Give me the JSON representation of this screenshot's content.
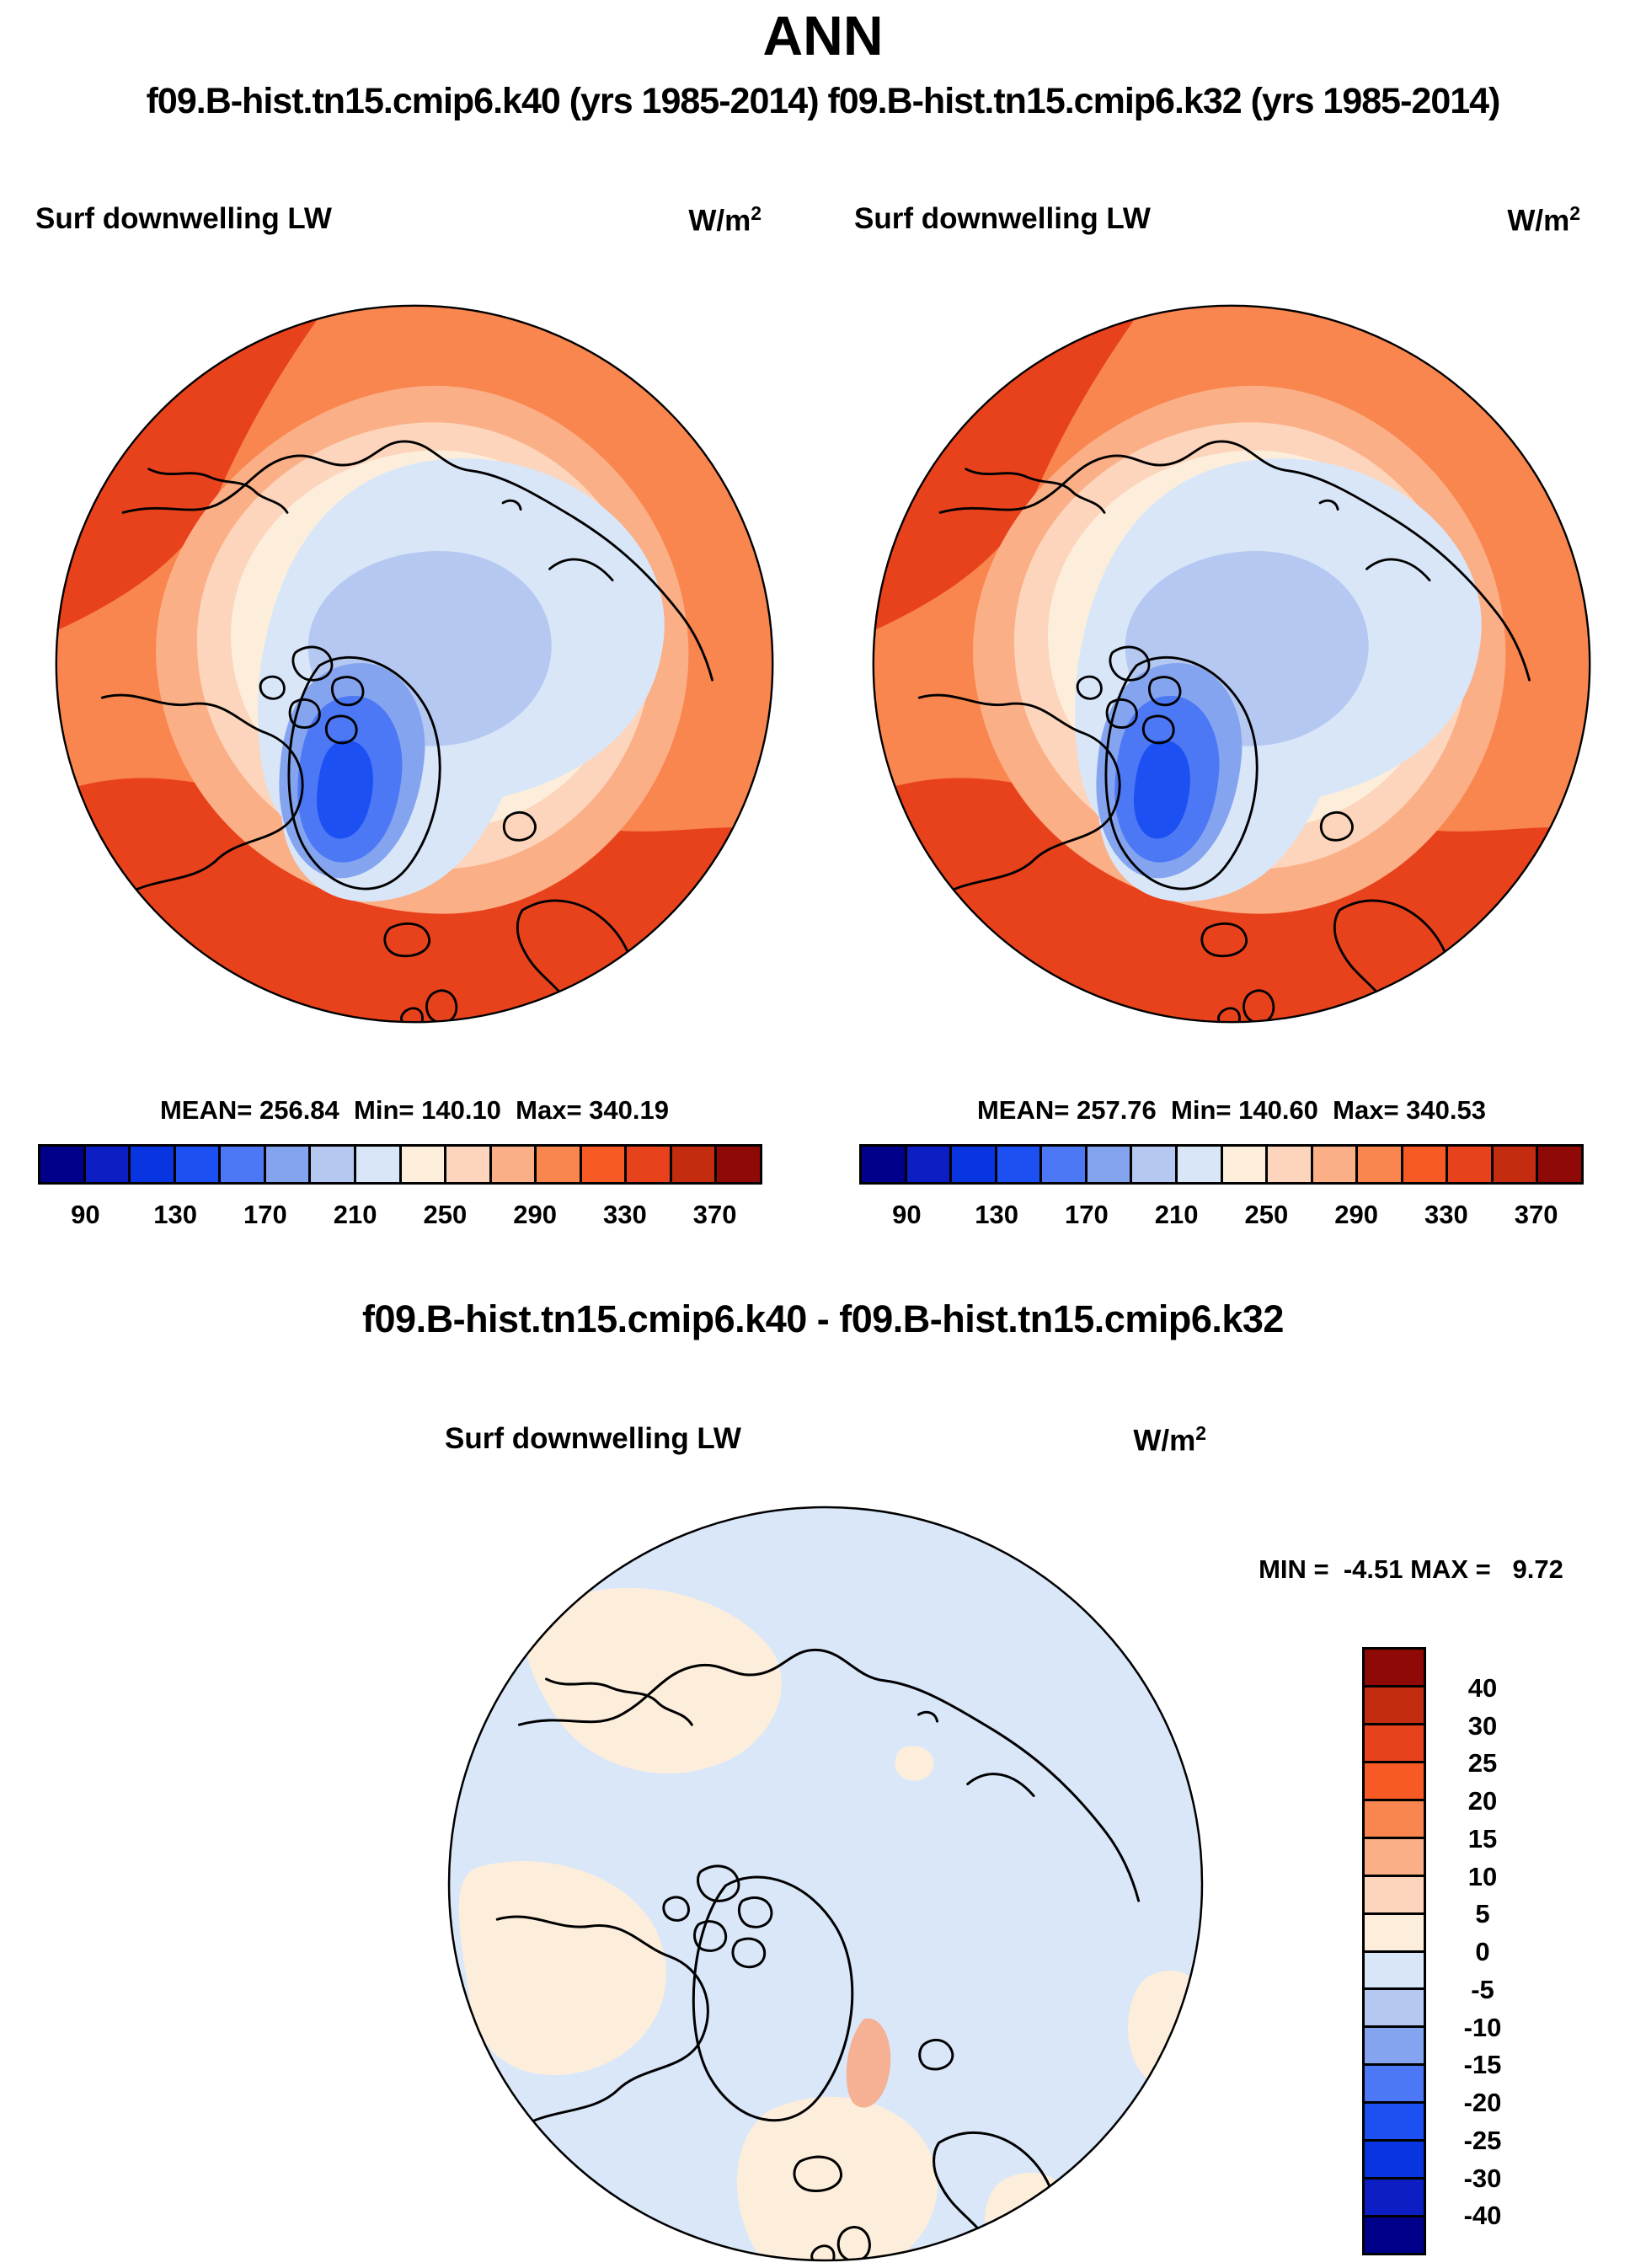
{
  "title": "ANN",
  "subtitle": "f09.B-hist.tn15.cmip6.k40 (yrs 1985-2014) f09.B-hist.tn15.cmip6.k32 (yrs 1985-2014)",
  "panels": [
    {
      "var_title": "Surf downwelling LW",
      "units": "W/m",
      "units_exp": "2",
      "stats": "MEAN= 256.84  Min= 140.10  Max= 340.19"
    },
    {
      "var_title": "Surf downwelling LW",
      "units": "W/m",
      "units_exp": "2",
      "stats": "MEAN= 257.76  Min= 140.60  Max= 340.53"
    }
  ],
  "colorbar": {
    "colors": [
      "#00008B",
      "#0D1EC4",
      "#0835E0",
      "#1C50F2",
      "#4C78F5",
      "#85A4F0",
      "#B4C8F2",
      "#D8E6F8",
      "#FDEEDC",
      "#FCD5BC",
      "#FBAF87",
      "#F9854F",
      "#F85A26",
      "#E8421C",
      "#C42C10",
      "#8F0A06"
    ],
    "tick_labels": [
      "90",
      "130",
      "170",
      "210",
      "250",
      "290",
      "330",
      "370"
    ]
  },
  "diff": {
    "title": "f09.B-hist.tn15.cmip6.k40 - f09.B-hist.tn15.cmip6.k32",
    "var_title": "Surf downwelling LW",
    "units": "W/m",
    "units_exp": "2",
    "minmax": "MIN =  -4.51 MAX =   9.72",
    "colorbar": {
      "colors": [
        "#8F0A06",
        "#C42C10",
        "#E8421C",
        "#F85A26",
        "#F9854F",
        "#FBAF87",
        "#FCD5BC",
        "#FDEEDC",
        "#D8E6F8",
        "#B4C8F2",
        "#85A4F0",
        "#4C78F5",
        "#1C50F2",
        "#0835E0",
        "#0D1EC4",
        "#00008B"
      ],
      "labels": [
        "40",
        "30",
        "25",
        "20",
        "15",
        "10",
        "5",
        "0",
        "-5",
        "-10",
        "-15",
        "-20",
        "-25",
        "-30",
        "-40"
      ]
    }
  },
  "chart_data": [
    {
      "type": "heatmap",
      "projection": "north-polar-stereographic",
      "title": "Surf downwelling LW",
      "dataset": "f09.B-hist.tn15.cmip6.k40 (yrs 1985-2014)",
      "units": "W/m2",
      "stats": {
        "mean": 256.84,
        "min": 140.1,
        "max": 340.19
      },
      "contour_levels": [
        90,
        110,
        130,
        150,
        170,
        190,
        210,
        230,
        250,
        270,
        290,
        310,
        330,
        350,
        370
      ],
      "palette": [
        "#00008B",
        "#0D1EC4",
        "#0835E0",
        "#1C50F2",
        "#4C78F5",
        "#85A4F0",
        "#B4C8F2",
        "#D8E6F8",
        "#FDEEDC",
        "#FCD5BC",
        "#FBAF87",
        "#F9854F",
        "#F85A26",
        "#E8421C",
        "#C42C10",
        "#8F0A06"
      ],
      "legend_position": "bottom"
    },
    {
      "type": "heatmap",
      "projection": "north-polar-stereographic",
      "title": "Surf downwelling LW",
      "dataset": "f09.B-hist.tn15.cmip6.k32 (yrs 1985-2014)",
      "units": "W/m2",
      "stats": {
        "mean": 257.76,
        "min": 140.6,
        "max": 340.53
      },
      "contour_levels": [
        90,
        110,
        130,
        150,
        170,
        190,
        210,
        230,
        250,
        270,
        290,
        310,
        330,
        350,
        370
      ],
      "palette": [
        "#00008B",
        "#0D1EC4",
        "#0835E0",
        "#1C50F2",
        "#4C78F5",
        "#85A4F0",
        "#B4C8F2",
        "#D8E6F8",
        "#FDEEDC",
        "#FCD5BC",
        "#FBAF87",
        "#F9854F",
        "#F85A26",
        "#E8421C",
        "#C42C10",
        "#8F0A06"
      ],
      "legend_position": "bottom"
    },
    {
      "type": "heatmap",
      "projection": "north-polar-stereographic",
      "title": "Surf downwelling LW",
      "dataset": "f09.B-hist.tn15.cmip6.k40 - f09.B-hist.tn15.cmip6.k32",
      "units": "W/m2",
      "stats": {
        "min": -4.51,
        "max": 9.72
      },
      "contour_levels": [
        -40,
        -30,
        -25,
        -20,
        -15,
        -10,
        -5,
        0,
        5,
        10,
        15,
        20,
        25,
        30,
        40
      ],
      "palette": [
        "#00008B",
        "#0D1EC4",
        "#0835E0",
        "#1C50F2",
        "#4C78F5",
        "#85A4F0",
        "#B4C8F2",
        "#D8E6F8",
        "#FDEEDC",
        "#FCD5BC",
        "#FBAF87",
        "#F9854F",
        "#F85A26",
        "#E8421C",
        "#C42C10",
        "#8F0A06"
      ],
      "legend_position": "right"
    }
  ]
}
